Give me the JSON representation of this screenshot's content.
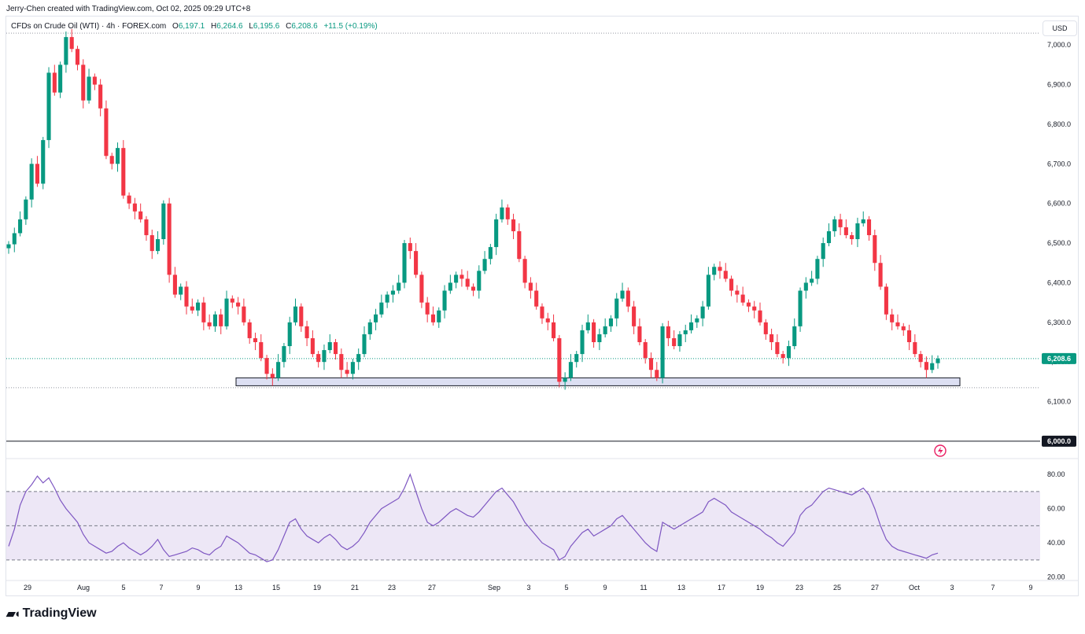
{
  "header": {
    "credit": "Jerry-Chen created with TradingView.com, Oct 02, 2025 09:29 UTC+8",
    "symbol": "CFDs on Crude Oil (WTI) · 4h · FOREX.com",
    "open_label": "O",
    "open": "6,197.1",
    "high_label": "H",
    "high": "6,264.6",
    "low_label": "L",
    "low": "6,195.6",
    "close_label": "C",
    "close": "6,208.6",
    "change": "+11.5 (+0.19%)",
    "currency": "USD"
  },
  "footer": {
    "brand": "TradingView"
  },
  "colors": {
    "up": "#089981",
    "down": "#f23645",
    "rsi": "#7e57c2",
    "rsi_band": "#ede7f6",
    "zone_fill": "#c5cae9",
    "zone_border": "#131722"
  },
  "chart_data": [
    {
      "type": "candlestick",
      "x": [
        "29",
        "Aug",
        "5",
        "7",
        "9",
        "13",
        "15",
        "19",
        "21",
        "23",
        "27",
        "Sep",
        "3",
        "5",
        "9",
        "11",
        "13",
        "17",
        "19",
        "23",
        "25",
        "27",
        "Oct",
        "3",
        "7",
        "9"
      ],
      "y_ticks": [
        "6,100.0",
        "6,200.0",
        "6,300.0",
        "6,400.0",
        "6,500.0",
        "6,600.0",
        "6,700.0",
        "6,800.0",
        "6,900.0",
        "7,000.0"
      ],
      "ylim": [
        5980,
        7050
      ],
      "last_price_label": "6,208.6",
      "last_price": 6208.6,
      "round_level_label": "6,000.0",
      "round_level": 6000,
      "support_zone": [
        6140,
        6160
      ],
      "dotted_levels": [
        7030,
        6135,
        6208.6
      ],
      "closes": [
        6497,
        6525,
        6560,
        6610,
        6700,
        6650,
        6760,
        6930,
        6880,
        6950,
        7020,
        6990,
        6950,
        6860,
        6920,
        6900,
        6840,
        6720,
        6700,
        6740,
        6620,
        6600,
        6580,
        6560,
        6520,
        6480,
        6510,
        6600,
        6420,
        6370,
        6390,
        6340,
        6330,
        6350,
        6300,
        6290,
        6320,
        6290,
        6360,
        6350,
        6340,
        6300,
        6260,
        6250,
        6210,
        6170,
        6160,
        6200,
        6240,
        6300,
        6340,
        6290,
        6260,
        6220,
        6200,
        6230,
        6250,
        6220,
        6180,
        6170,
        6200,
        6220,
        6270,
        6300,
        6320,
        6350,
        6370,
        6380,
        6400,
        6500,
        6480,
        6420,
        6350,
        6320,
        6300,
        6330,
        6380,
        6400,
        6420,
        6410,
        6390,
        6380,
        6430,
        6460,
        6490,
        6560,
        6590,
        6560,
        6530,
        6460,
        6400,
        6380,
        6340,
        6310,
        6300,
        6260,
        6150,
        6160,
        6200,
        6220,
        6280,
        6300,
        6250,
        6270,
        6290,
        6310,
        6360,
        6380,
        6340,
        6290,
        6250,
        6210,
        6180,
        6160,
        6290,
        6260,
        6240,
        6270,
        6280,
        6300,
        6310,
        6340,
        6420,
        6440,
        6430,
        6410,
        6380,
        6370,
        6350,
        6340,
        6330,
        6300,
        6270,
        6250,
        6220,
        6210,
        6240,
        6290,
        6380,
        6400,
        6410,
        6460,
        6500,
        6530,
        6560,
        6540,
        6520,
        6510,
        6550,
        6560,
        6520,
        6450,
        6390,
        6320,
        6300,
        6290,
        6280,
        6250,
        6220,
        6200,
        6180,
        6197,
        6208.6
      ],
      "rsi": {
        "y_ticks": [
          "20.00",
          "40.00",
          "60.00",
          "80.00"
        ],
        "ylim": [
          18,
          86
        ],
        "band": [
          30,
          70
        ],
        "midline": 50,
        "values": [
          38,
          48,
          62,
          70,
          74,
          79,
          75,
          78,
          72,
          65,
          60,
          56,
          52,
          45,
          40,
          38,
          36,
          34,
          35,
          38,
          40,
          37,
          35,
          33,
          35,
          38,
          42,
          36,
          32,
          33,
          34,
          35,
          37,
          36,
          34,
          33,
          36,
          38,
          44,
          42,
          40,
          37,
          34,
          33,
          31,
          29,
          30,
          36,
          44,
          52,
          54,
          48,
          44,
          42,
          40,
          43,
          45,
          42,
          38,
          36,
          38,
          41,
          46,
          52,
          56,
          60,
          62,
          64,
          66,
          72,
          80,
          70,
          60,
          52,
          50,
          52,
          55,
          58,
          60,
          58,
          56,
          55,
          58,
          62,
          66,
          70,
          72,
          68,
          64,
          58,
          52,
          48,
          44,
          40,
          38,
          36,
          30,
          32,
          38,
          42,
          46,
          48,
          44,
          46,
          48,
          50,
          54,
          56,
          52,
          48,
          44,
          40,
          37,
          35,
          52,
          50,
          48,
          50,
          52,
          54,
          56,
          58,
          64,
          66,
          64,
          62,
          58,
          56,
          54,
          52,
          50,
          48,
          45,
          43,
          40,
          38,
          42,
          46,
          56,
          60,
          62,
          66,
          70,
          72,
          71,
          70,
          69,
          68,
          70,
          72,
          68,
          60,
          50,
          42,
          38,
          36,
          35,
          34,
          33,
          32,
          31,
          33,
          34
        ]
      }
    }
  ]
}
